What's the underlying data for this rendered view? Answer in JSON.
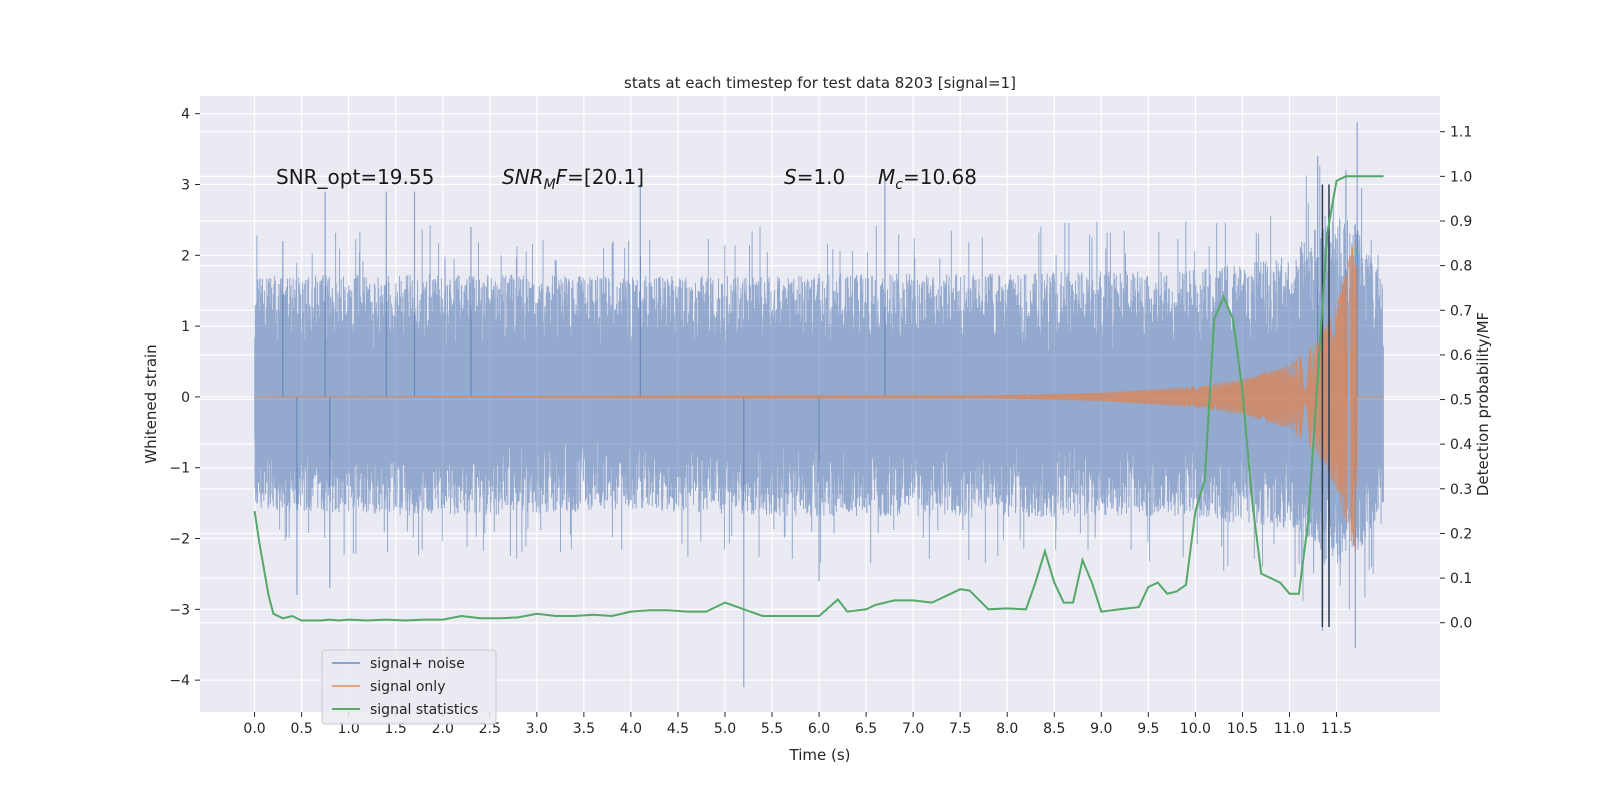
{
  "chart_data": {
    "type": "line",
    "title": "stats at each timestep for test data 8203 [signal=1]",
    "xlabel": "Time (s)",
    "ylabel": "Whitened strain",
    "ylabel_right": "Detection probability/MF",
    "xlim": [
      -0.58,
      12.6
    ],
    "ylim": [
      -4.45,
      4.25
    ],
    "ylim_right": [
      -0.2,
      1.18
    ],
    "x_ticks": [
      "0.0",
      "0.5",
      "1.0",
      "1.5",
      "2.0",
      "2.5",
      "3.0",
      "3.5",
      "4.0",
      "4.5",
      "5.0",
      "5.5",
      "6.0",
      "6.5",
      "7.0",
      "7.5",
      "8.0",
      "8.5",
      "9.0",
      "9.5",
      "10.0",
      "10.5",
      "11.0",
      "11.5"
    ],
    "y_ticks": [
      "4",
      "3",
      "2",
      "1",
      "0",
      "−1",
      "−2",
      "−3",
      "−4"
    ],
    "y_ticks_right": [
      "1.1",
      "1.0",
      "0.9",
      "0.8",
      "0.7",
      "0.6",
      "0.5",
      "0.4",
      "0.3",
      "0.2",
      "0.1",
      "0.0"
    ],
    "grid": true,
    "legend_position": "lower-left",
    "annotations": {
      "snr_opt": "SNR_opt=19.55",
      "snr_mf_pre": "SNR",
      "snr_mf_sub": "M",
      "snr_mf_f": "F",
      "snr_mf_post": "=[20.1]",
      "s_sym": "S",
      "s_val": "=1.0",
      "mc_sym": "M",
      "mc_sub": "c",
      "mc_val": "=10.68"
    },
    "series": [
      {
        "name": "signal+ noise",
        "color": "#4c72b0",
        "axis": "left",
        "x_range": [
          0.0,
          12.0
        ],
        "band_min": [
          -1.7,
          -4.1,
          3.88
        ],
        "envelope_upper": [
          [
            0.0,
            1.7
          ],
          [
            2.0,
            1.75
          ],
          [
            4.0,
            1.7
          ],
          [
            6.0,
            1.75
          ],
          [
            8.0,
            1.75
          ],
          [
            10.0,
            1.8
          ],
          [
            11.0,
            2.0
          ],
          [
            11.4,
            2.6
          ],
          [
            11.7,
            2.5
          ],
          [
            12.0,
            1.6
          ]
        ],
        "envelope_lower": [
          [
            0.0,
            -1.6
          ],
          [
            2.0,
            -1.7
          ],
          [
            4.0,
            -1.6
          ],
          [
            6.0,
            -1.7
          ],
          [
            8.0,
            -1.7
          ],
          [
            10.0,
            -1.7
          ],
          [
            11.0,
            -1.9
          ],
          [
            11.4,
            -2.4
          ],
          [
            11.7,
            -2.3
          ],
          [
            12.0,
            -1.5
          ]
        ],
        "spikes": [
          [
            0.3,
            2.2
          ],
          [
            0.45,
            -2.8
          ],
          [
            0.75,
            2.9
          ],
          [
            0.8,
            -2.7
          ],
          [
            1.4,
            2.9
          ],
          [
            1.7,
            2.9
          ],
          [
            2.3,
            2.4
          ],
          [
            4.1,
            3.0
          ],
          [
            5.2,
            -4.1
          ],
          [
            6.0,
            -2.6
          ],
          [
            6.7,
            3.05
          ],
          [
            11.3,
            3.4
          ],
          [
            11.35,
            -3.3
          ],
          [
            11.42,
            -3.2
          ],
          [
            11.6,
            3.2
          ],
          [
            11.7,
            -3.55
          ],
          [
            11.72,
            3.88
          ]
        ]
      },
      {
        "name": "signal only",
        "color": "#dd8452",
        "axis": "left",
        "chirp_start": 7.8,
        "merger_time": 11.72,
        "envelope": [
          [
            0.0,
            0.0
          ],
          [
            7.8,
            0.02
          ],
          [
            9.0,
            0.06
          ],
          [
            10.0,
            0.15
          ],
          [
            10.5,
            0.25
          ],
          [
            11.0,
            0.45
          ],
          [
            11.3,
            0.8
          ],
          [
            11.5,
            1.3
          ],
          [
            11.6,
            1.8
          ],
          [
            11.7,
            2.3
          ],
          [
            11.75,
            0.0
          ],
          [
            12.0,
            0.0
          ]
        ]
      },
      {
        "name": "signal statistics",
        "color": "#55a868",
        "axis": "right",
        "x": [
          0.0,
          0.05,
          0.1,
          0.15,
          0.2,
          0.3,
          0.4,
          0.5,
          0.6,
          0.7,
          0.8,
          0.9,
          1.0,
          1.2,
          1.4,
          1.6,
          1.8,
          2.0,
          2.2,
          2.4,
          2.6,
          2.8,
          3.0,
          3.2,
          3.4,
          3.6,
          3.8,
          4.0,
          4.2,
          4.4,
          4.6,
          4.8,
          5.0,
          5.2,
          5.4,
          5.6,
          5.8,
          6.0,
          6.2,
          6.3,
          6.5,
          6.6,
          6.8,
          7.0,
          7.2,
          7.4,
          7.5,
          7.6,
          7.8,
          8.0,
          8.2,
          8.3,
          8.4,
          8.5,
          8.6,
          8.7,
          8.8,
          8.9,
          9.0,
          9.2,
          9.4,
          9.5,
          9.6,
          9.7,
          9.8,
          9.9,
          10.0,
          10.1,
          10.2,
          10.3,
          10.4,
          10.5,
          10.6,
          10.7,
          10.8,
          10.9,
          11.0,
          11.1,
          11.2,
          11.3,
          11.4,
          11.5,
          11.6,
          11.7,
          11.8,
          11.9,
          12.0
        ],
        "y": [
          0.25,
          0.18,
          0.12,
          0.06,
          0.02,
          0.01,
          0.015,
          0.005,
          0.005,
          0.005,
          0.007,
          0.005,
          0.007,
          0.005,
          0.007,
          0.005,
          0.007,
          0.007,
          0.015,
          0.01,
          0.01,
          0.012,
          0.02,
          0.015,
          0.015,
          0.018,
          0.015,
          0.025,
          0.028,
          0.028,
          0.025,
          0.025,
          0.045,
          0.03,
          0.015,
          0.015,
          0.015,
          0.015,
          0.052,
          0.025,
          0.03,
          0.04,
          0.05,
          0.05,
          0.045,
          0.065,
          0.075,
          0.072,
          0.03,
          0.032,
          0.03,
          0.09,
          0.16,
          0.09,
          0.045,
          0.045,
          0.14,
          0.09,
          0.025,
          0.03,
          0.035,
          0.08,
          0.09,
          0.065,
          0.07,
          0.085,
          0.25,
          0.32,
          0.68,
          0.73,
          0.68,
          0.52,
          0.28,
          0.11,
          0.1,
          0.09,
          0.065,
          0.065,
          0.23,
          0.55,
          0.87,
          0.99,
          1.0,
          1.0,
          1.0,
          1.0,
          1.0
        ]
      }
    ],
    "vertical_markers": [
      11.35,
      11.42
    ]
  }
}
